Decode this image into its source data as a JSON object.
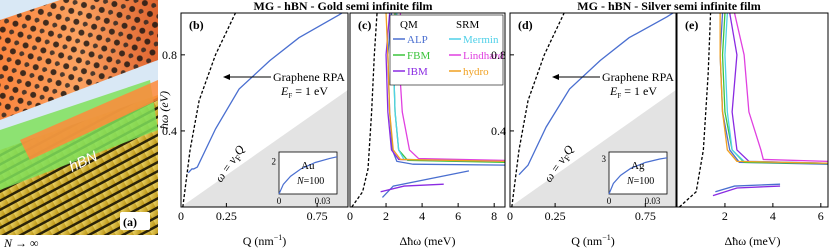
{
  "illustration": {
    "label": "(a)",
    "material": "hBN",
    "caption": {
      "main": "N",
      "rest": " → ∞"
    }
  },
  "chart_data": [
    {
      "type": "line",
      "panel_label": "(b)",
      "title": "MG - hBN - Gold semi infinite film",
      "ylabel": "ħω (eV)",
      "xlabel": {
        "main": "Q (nm",
        "sup": "−1",
        "end": ")"
      },
      "xlim": [
        0,
        0.92
      ],
      "ylim": [
        0,
        1.02
      ],
      "xticks": [
        0,
        0.25,
        0.75
      ],
      "yticks": [
        0.4,
        0.8
      ],
      "shaded_region": {
        "x": [
          0,
          0.92,
          0.92
        ],
        "y": [
          0,
          0.616,
          0
        ],
        "color": "#e3e3e3"
      },
      "annotation": {
        "line1": "Graphene RPA",
        "line2": {
          "main": "E",
          "sub": "F",
          "rest": " = 1 eV"
        }
      },
      "region_label": {
        "a": "ω = v",
        "sub": "F",
        "b": "Q"
      },
      "series": [
        {
          "color": "#000000",
          "style": "dashed",
          "x": [
            0.01,
            0.05,
            0.1,
            0.19,
            0.3
          ],
          "y": [
            0,
            0.3,
            0.56,
            0.8,
            1.02
          ]
        },
        {
          "color": "#4a6fd0",
          "style": "solid",
          "x": [
            0.04,
            0.06,
            0.07,
            0.09,
            0.19,
            0.32,
            0.49,
            0.65,
            0.87,
            0.92
          ],
          "y": [
            0.18,
            0.2,
            0.2,
            0.21,
            0.41,
            0.62,
            0.77,
            0.89,
            1.01,
            1.04
          ]
        }
      ],
      "inset": {
        "label": "Au",
        "n": {
          "main": "N",
          "rest": "=100"
        },
        "xlim": [
          0,
          0.04
        ],
        "ylim": [
          0,
          2.6
        ],
        "xticks": [
          0,
          0.03
        ],
        "yticks": [
          2
        ],
        "color": "#4a6fd0",
        "x": [
          0,
          0.003,
          0.008,
          0.015,
          0.025,
          0.035,
          0.04
        ],
        "y": [
          0,
          0.6,
          1.1,
          1.55,
          1.95,
          2.2,
          2.3
        ]
      }
    },
    {
      "type": "line",
      "panel_label": "(c)",
      "xlabel": "Δħω (meV)",
      "xlim": [
        0,
        8.6
      ],
      "ylim": [
        0,
        1.02
      ],
      "xticks": [
        0,
        2,
        4,
        6,
        8
      ],
      "legend_headers": [
        "QM",
        "SRM"
      ],
      "series": [
        {
          "color": "#000000",
          "style": "dashed",
          "x": [
            0.1,
            0.7,
            1.0,
            1.2,
            1.35,
            1.5
          ],
          "y": [
            0,
            0.08,
            0.2,
            0.5,
            0.8,
            1.02
          ]
        },
        {
          "name": "ALP",
          "legend_column": 0,
          "color": "#4a6fd0",
          "style": "solid",
          "x": [
            2.3,
            2.1,
            2.2,
            2.35,
            2.6,
            3.5,
            8.6,
            null,
            1.8,
            2.4,
            6.6
          ],
          "y": [
            1.02,
            0.8,
            0.5,
            0.3,
            0.24,
            0.225,
            0.22,
            null,
            0.05,
            0.11,
            0.19
          ]
        },
        {
          "name": "FBM",
          "legend_column": 0,
          "color": "#3cc43c",
          "style": "solid",
          "x": [
            2.5,
            2.4,
            2.5,
            2.7,
            3.2,
            8.6
          ],
          "y": [
            1.02,
            0.8,
            0.5,
            0.3,
            0.245,
            0.235
          ]
        },
        {
          "name": "IBM",
          "legend_column": 0,
          "color": "#8a2be2",
          "style": "solid",
          "x": [
            2.2,
            2.0,
            2.1,
            2.3,
            2.7,
            8.6,
            null,
            1.7,
            3,
            5.2
          ],
          "y": [
            1.02,
            0.8,
            0.5,
            0.3,
            0.25,
            0.24,
            null,
            0.08,
            0.11,
            0.12
          ]
        },
        {
          "name": "Mermin",
          "legend_column": 1,
          "color": "#4fd0e8",
          "style": "solid",
          "x": [
            2.6,
            2.4,
            2.5,
            2.7,
            3.0,
            8.6
          ],
          "y": [
            1.02,
            0.8,
            0.5,
            0.3,
            0.25,
            0.24
          ]
        },
        {
          "name": "Lindhard",
          "legend_column": 1,
          "color": "#e040e0",
          "style": "solid",
          "x": [
            2.8,
            2.7,
            2.9,
            3.3,
            3.8,
            8.6
          ],
          "y": [
            1.02,
            0.8,
            0.5,
            0.3,
            0.255,
            0.245
          ]
        },
        {
          "name": "hydro",
          "legend_column": 1,
          "color": "#f0a020",
          "style": "solid",
          "x": [
            2.0,
            2.1,
            2.2,
            2.4,
            2.8,
            8.6
          ],
          "y": [
            1.02,
            0.8,
            0.5,
            0.3,
            0.25,
            0.24
          ]
        }
      ]
    },
    {
      "type": "line",
      "panel_label": "(d)",
      "title": "MG - hBN - Silver semi infinite film",
      "xlabel": {
        "main": "Q (nm",
        "sup": "−1",
        "end": ")"
      },
      "xlim": [
        0,
        0.92
      ],
      "ylim": [
        0,
        1.02
      ],
      "xticks": [
        0,
        0.25,
        0.75
      ],
      "yticks": [
        0.4,
        0.8
      ],
      "shaded_region": {
        "x": [
          0,
          0.92,
          0.92
        ],
        "y": [
          0,
          0.616,
          0
        ],
        "color": "#e3e3e3"
      },
      "annotation": {
        "line1": "Graphene RPA",
        "line2": {
          "main": "E",
          "sub": "F",
          "rest": " = 1 eV"
        }
      },
      "region_label": {
        "a": "ω = v",
        "sub": "F",
        "b": "Q"
      },
      "series": [
        {
          "color": "#000000",
          "style": "dashed",
          "x": [
            0.01,
            0.05,
            0.1,
            0.19,
            0.3
          ],
          "y": [
            0,
            0.3,
            0.56,
            0.8,
            1.02
          ]
        },
        {
          "color": "#4a6fd0",
          "style": "solid",
          "x": [
            0.05,
            0.07,
            0.08,
            0.1,
            0.2,
            0.33,
            0.5,
            0.66,
            0.87,
            0.92
          ],
          "y": [
            0.17,
            0.19,
            0.2,
            0.22,
            0.42,
            0.62,
            0.77,
            0.89,
            1.0,
            1.03
          ]
        }
      ],
      "inset": {
        "label": "Ag",
        "n": {
          "main": "N",
          "rest": "=100"
        },
        "xlim": [
          0,
          0.04
        ],
        "ylim": [
          0,
          3.6
        ],
        "xticks": [
          0,
          0.03
        ],
        "yticks": [
          3
        ],
        "color": "#4a6fd0",
        "x": [
          0,
          0.003,
          0.008,
          0.015,
          0.025,
          0.035,
          0.04
        ],
        "y": [
          0,
          0.9,
          1.6,
          2.2,
          2.7,
          3.0,
          3.1
        ]
      }
    },
    {
      "type": "line",
      "panel_label": "(e)",
      "xlabel": "Δħω (meV)",
      "xlim": [
        0,
        6.3
      ],
      "ylim": [
        0,
        1.02
      ],
      "xticks": [
        2,
        4,
        6
      ],
      "series": [
        {
          "color": "#000000",
          "style": "dashed",
          "x": [
            0.1,
            0.8,
            1.1,
            1.3,
            1.4
          ],
          "y": [
            0,
            0.08,
            0.3,
            0.7,
            1.02
          ]
        },
        {
          "color": "#4a6fd0",
          "style": "solid",
          "x": [
            1.9,
            1.8,
            1.9,
            2.2,
            2.6,
            6.3,
            null,
            1.6,
            2.4,
            4.3
          ],
          "y": [
            1.02,
            0.8,
            0.5,
            0.3,
            0.235,
            0.225,
            null,
            0.08,
            0.11,
            0.12
          ]
        },
        {
          "color": "#3cc43c",
          "style": "solid",
          "x": [
            2.0,
            1.9,
            2.0,
            2.3,
            2.8,
            6.3
          ],
          "y": [
            1.02,
            0.8,
            0.5,
            0.3,
            0.235,
            0.228
          ]
        },
        {
          "color": "#8a2be2",
          "style": "solid",
          "x": [
            2.2,
            2.5,
            2.3,
            2.5,
            3,
            6.3,
            null,
            1.5,
            2.5,
            4.3
          ],
          "y": [
            1.02,
            0.8,
            0.5,
            0.3,
            0.24,
            0.23,
            null,
            0.06,
            0.1,
            0.11
          ]
        },
        {
          "color": "#4fd0e8",
          "style": "solid",
          "x": [
            2.1,
            2.0,
            2.1,
            2.3,
            2.8,
            6.3
          ],
          "y": [
            1.02,
            0.8,
            0.5,
            0.3,
            0.24,
            0.23
          ]
        },
        {
          "color": "#e040e0",
          "style": "solid",
          "x": [
            2.4,
            2.8,
            3.0,
            3.5,
            3.6,
            6.3
          ],
          "y": [
            1.02,
            0.8,
            0.5,
            0.3,
            0.25,
            0.24
          ]
        },
        {
          "color": "#f0a020",
          "style": "solid",
          "x": [
            1.8,
            1.8,
            1.9,
            2.1,
            2.5,
            6.3
          ],
          "y": [
            1.02,
            0.8,
            0.5,
            0.3,
            0.24,
            0.23
          ]
        }
      ]
    }
  ]
}
